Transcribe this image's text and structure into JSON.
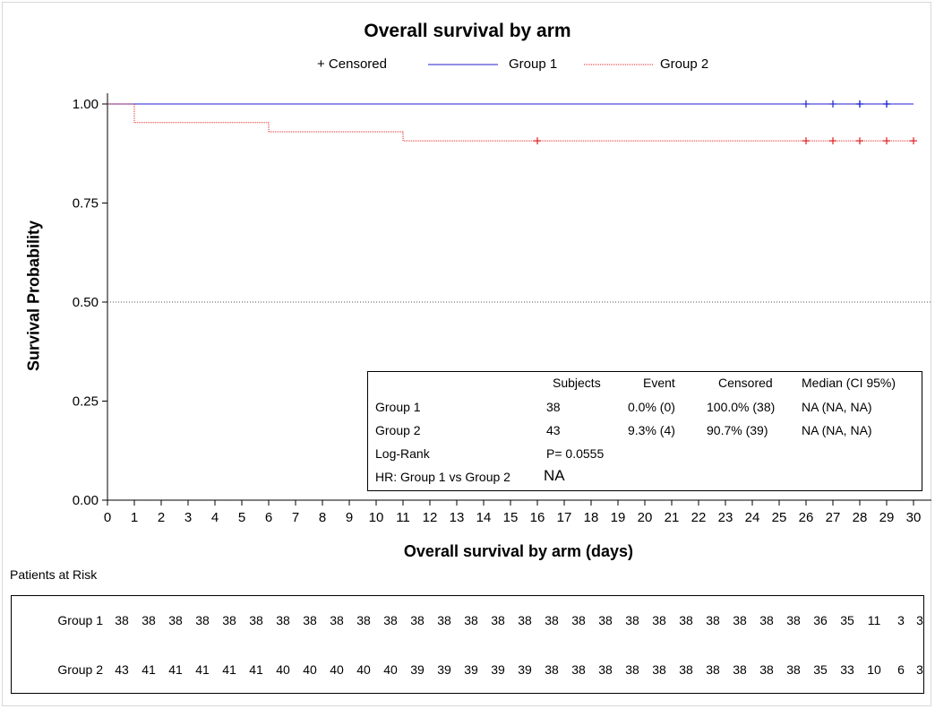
{
  "chart_data": {
    "type": "line",
    "title": "Overall survival by arm",
    "xlabel": "Overall survival by arm (days)",
    "ylabel": "Survival Probability",
    "xlim": [
      0,
      30
    ],
    "ylim": [
      0,
      1
    ],
    "x_ticks": [
      "0",
      "1",
      "2",
      "3",
      "4",
      "5",
      "6",
      "7",
      "8",
      "9",
      "10",
      "11",
      "12",
      "13",
      "14",
      "15",
      "16",
      "17",
      "18",
      "19",
      "20",
      "21",
      "22",
      "23",
      "24",
      "25",
      "26",
      "27",
      "28",
      "29",
      "30"
    ],
    "y_ticks": [
      "0.00",
      "0.25",
      "0.50",
      "0.75",
      "1.00"
    ],
    "reference_line_y": 0.5,
    "legend": {
      "censored_label": "+ Censored",
      "placement": "top"
    },
    "series": [
      {
        "name": "Group 1",
        "color": "#2020d0",
        "style": "solid",
        "steps": [
          [
            0,
            1.0
          ],
          [
            30,
            1.0
          ]
        ],
        "censored": [
          [
            26,
            1.0
          ],
          [
            27,
            1.0
          ],
          [
            28,
            1.0
          ],
          [
            28,
            1.0
          ],
          [
            29,
            1.0
          ],
          [
            29,
            1.0
          ]
        ]
      },
      {
        "name": "Group 2",
        "color": "#e02020",
        "style": "dotted",
        "steps": [
          [
            0,
            1.0
          ],
          [
            1,
            0.953
          ],
          [
            6,
            0.93
          ],
          [
            11,
            0.907
          ],
          [
            30,
            0.907
          ]
        ],
        "censored": [
          [
            16,
            0.907
          ],
          [
            26,
            0.907
          ],
          [
            27,
            0.907
          ],
          [
            28,
            0.907
          ],
          [
            29,
            0.907
          ],
          [
            30,
            0.907
          ]
        ]
      }
    ],
    "stats_table": {
      "headers": [
        "",
        "Subjects",
        "Event",
        "Censored",
        "Median (CI 95%)"
      ],
      "rows": [
        [
          "Group 1",
          "38",
          "0.0% (0)",
          "100.0% (38)",
          "NA (NA, NA)"
        ],
        [
          "Group 2",
          "43",
          "9.3% (4)",
          "90.7% (39)",
          "NA (NA, NA)"
        ]
      ],
      "logrank_label": "Log-Rank",
      "logrank_value": "P= 0.0555",
      "hr_label": "HR: Group 1 vs Group 2",
      "hr_value": "NA"
    },
    "risk_table": {
      "title": "Patients at Risk",
      "rows": [
        {
          "name": "Group 1",
          "values": [
            38,
            38,
            38,
            38,
            38,
            38,
            38,
            38,
            38,
            38,
            38,
            38,
            38,
            38,
            38,
            38,
            38,
            38,
            38,
            38,
            38,
            38,
            38,
            38,
            38,
            38,
            36,
            35,
            11,
            3,
            3
          ]
        },
        {
          "name": "Group 2",
          "values": [
            43,
            41,
            41,
            41,
            41,
            41,
            40,
            40,
            40,
            40,
            40,
            39,
            39,
            39,
            39,
            39,
            38,
            38,
            38,
            38,
            38,
            38,
            38,
            38,
            38,
            38,
            35,
            33,
            10,
            6,
            3
          ]
        }
      ]
    }
  }
}
